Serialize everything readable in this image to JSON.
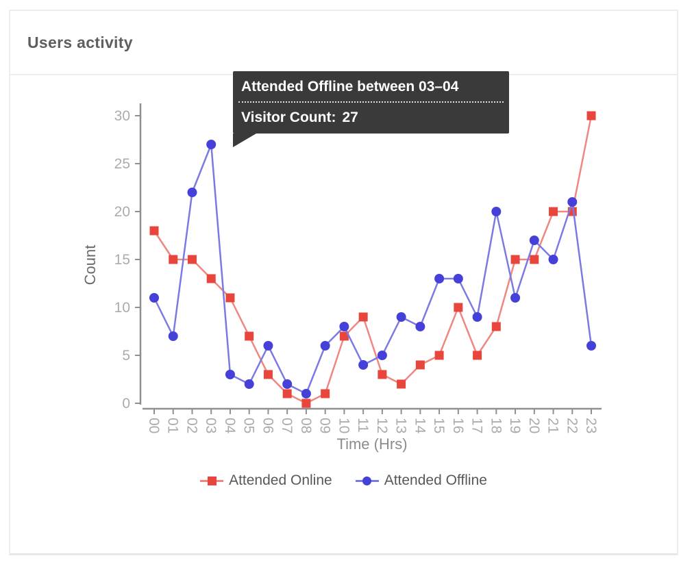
{
  "card": {
    "title": "Users activity"
  },
  "tooltip": {
    "title": "Attended Offline between 03–04",
    "label": "Visitor Count:",
    "value": "27",
    "background": "#3a3a3a",
    "text_color": "#ffffff"
  },
  "chart_data": {
    "type": "line",
    "title": "Users activity",
    "x": [
      "00",
      "01",
      "02",
      "03",
      "04",
      "05",
      "06",
      "07",
      "08",
      "09",
      "10",
      "11",
      "12",
      "13",
      "14",
      "15",
      "16",
      "17",
      "18",
      "19",
      "20",
      "21",
      "22",
      "23"
    ],
    "xlabel": "Time (Hrs)",
    "ylabel": "Count",
    "ylim": [
      0,
      30
    ],
    "yticks": [
      0,
      5,
      10,
      15,
      20,
      25,
      30
    ],
    "grid": false,
    "legend_position": "bottom",
    "axis_color": "#8f8f8f",
    "tick_label_color": "#ababab",
    "series": [
      {
        "name": "Attended Online",
        "marker": "square",
        "marker_color": "#e8463c",
        "line_color": "#ef8680",
        "values": [
          18,
          15,
          15,
          13,
          11,
          7,
          3,
          1,
          0,
          1,
          7,
          9,
          3,
          2,
          4,
          5,
          10,
          5,
          8,
          15,
          15,
          20,
          20,
          30
        ]
      },
      {
        "name": "Attended Offline",
        "marker": "circle",
        "marker_color": "#4540d8",
        "line_color": "#7b79e2",
        "values": [
          11,
          7,
          22,
          27,
          3,
          2,
          6,
          2,
          1,
          6,
          8,
          4,
          5,
          9,
          8,
          13,
          13,
          9,
          20,
          11,
          17,
          15,
          21,
          6
        ]
      }
    ],
    "tooltip_point": {
      "series": "Attended Offline",
      "x": "03",
      "value": 27
    }
  }
}
